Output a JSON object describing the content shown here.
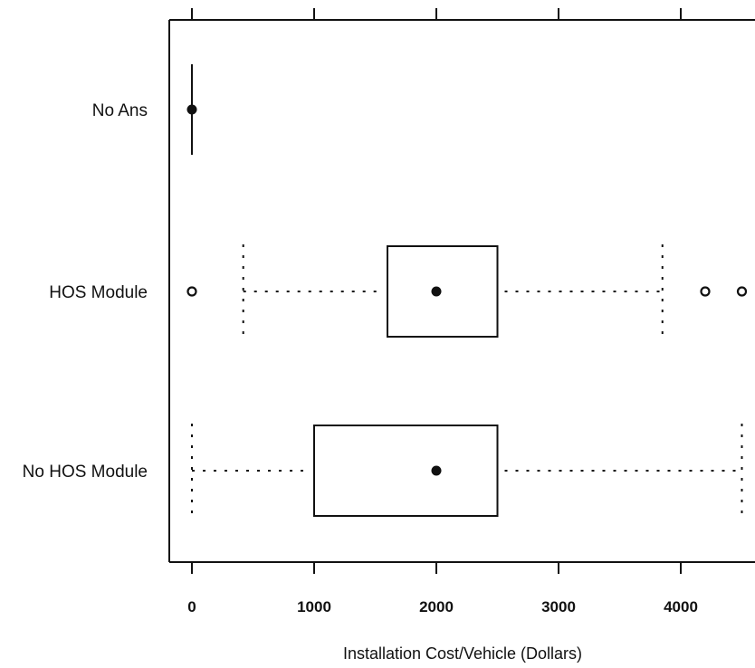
{
  "chart_data": {
    "type": "boxplot",
    "orientation": "horizontal",
    "xlabel": "Installation Cost/Vehicle (Dollars)",
    "ylabel": "",
    "xlim": [
      -175,
      4700
    ],
    "x_ticks": [
      0,
      1000,
      2000,
      3000,
      4000
    ],
    "x_tick_labels": [
      "0",
      "1000",
      "2000",
      "3000",
      "4000"
    ],
    "top_axis_ticks": true,
    "grid": false,
    "categories": [
      "No Ans",
      "HOS Module",
      "No HOS Module"
    ],
    "boxes": [
      {
        "label": "No Ans",
        "whisker_low": 0,
        "q1": 0,
        "median": 0,
        "q3": 0,
        "whisker_high": 0,
        "outliers": []
      },
      {
        "label": "HOS Module",
        "whisker_low": 420,
        "q1": 1600,
        "median": 2000,
        "q3": 2500,
        "whisker_high": 3850,
        "outliers": [
          0,
          4200,
          4500
        ]
      },
      {
        "label": "No HOS Module",
        "whisker_low": 0,
        "q1": 1000,
        "median": 2000,
        "q3": 2500,
        "whisker_high": 4500,
        "outliers": []
      }
    ]
  }
}
